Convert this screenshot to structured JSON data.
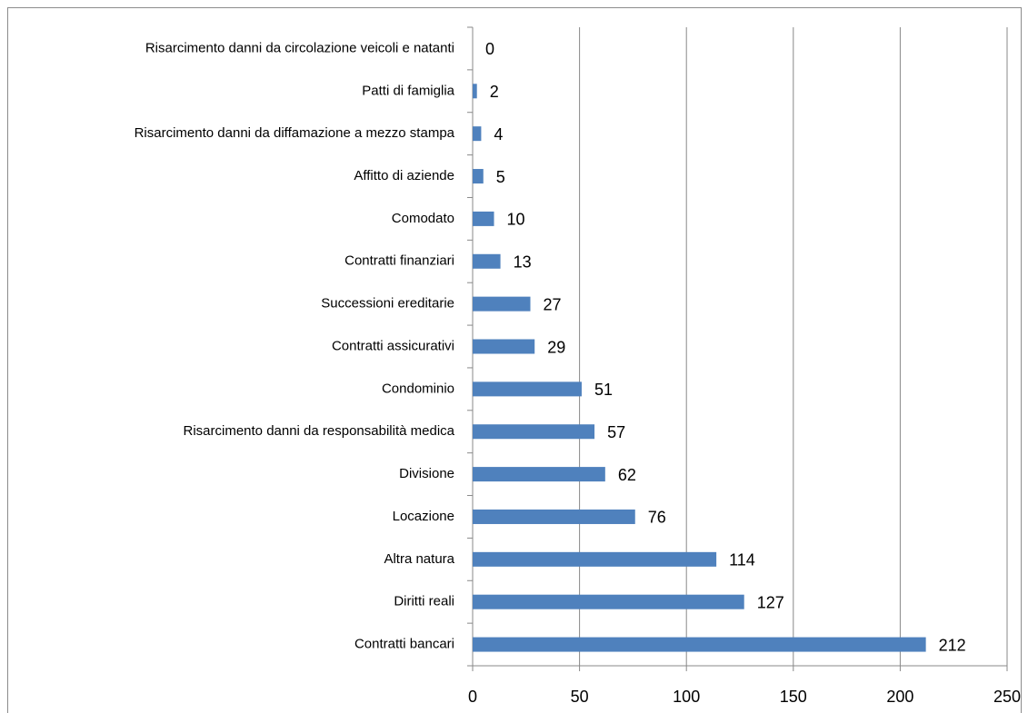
{
  "chart_data": {
    "type": "bar",
    "orientation": "horizontal",
    "categories": [
      "Risarcimento danni da circolazione veicoli e natanti",
      "Patti di famiglia",
      "Risarcimento danni da diffamazione a mezzo stampa",
      "Affitto di aziende",
      "Comodato",
      "Contratti finanziari",
      "Successioni ereditarie",
      "Contratti assicurativi",
      "Condominio",
      "Risarcimento danni da responsabilità medica",
      "Divisione",
      "Locazione",
      "Altra natura",
      "Diritti reali",
      "Contratti bancari"
    ],
    "values": [
      0,
      2,
      4,
      5,
      10,
      13,
      27,
      29,
      51,
      57,
      62,
      76,
      114,
      127,
      212
    ],
    "color": "#4f81bd",
    "xlim": [
      0,
      250
    ],
    "xticks": [
      0,
      50,
      100,
      150,
      200,
      250
    ],
    "grid": true
  }
}
